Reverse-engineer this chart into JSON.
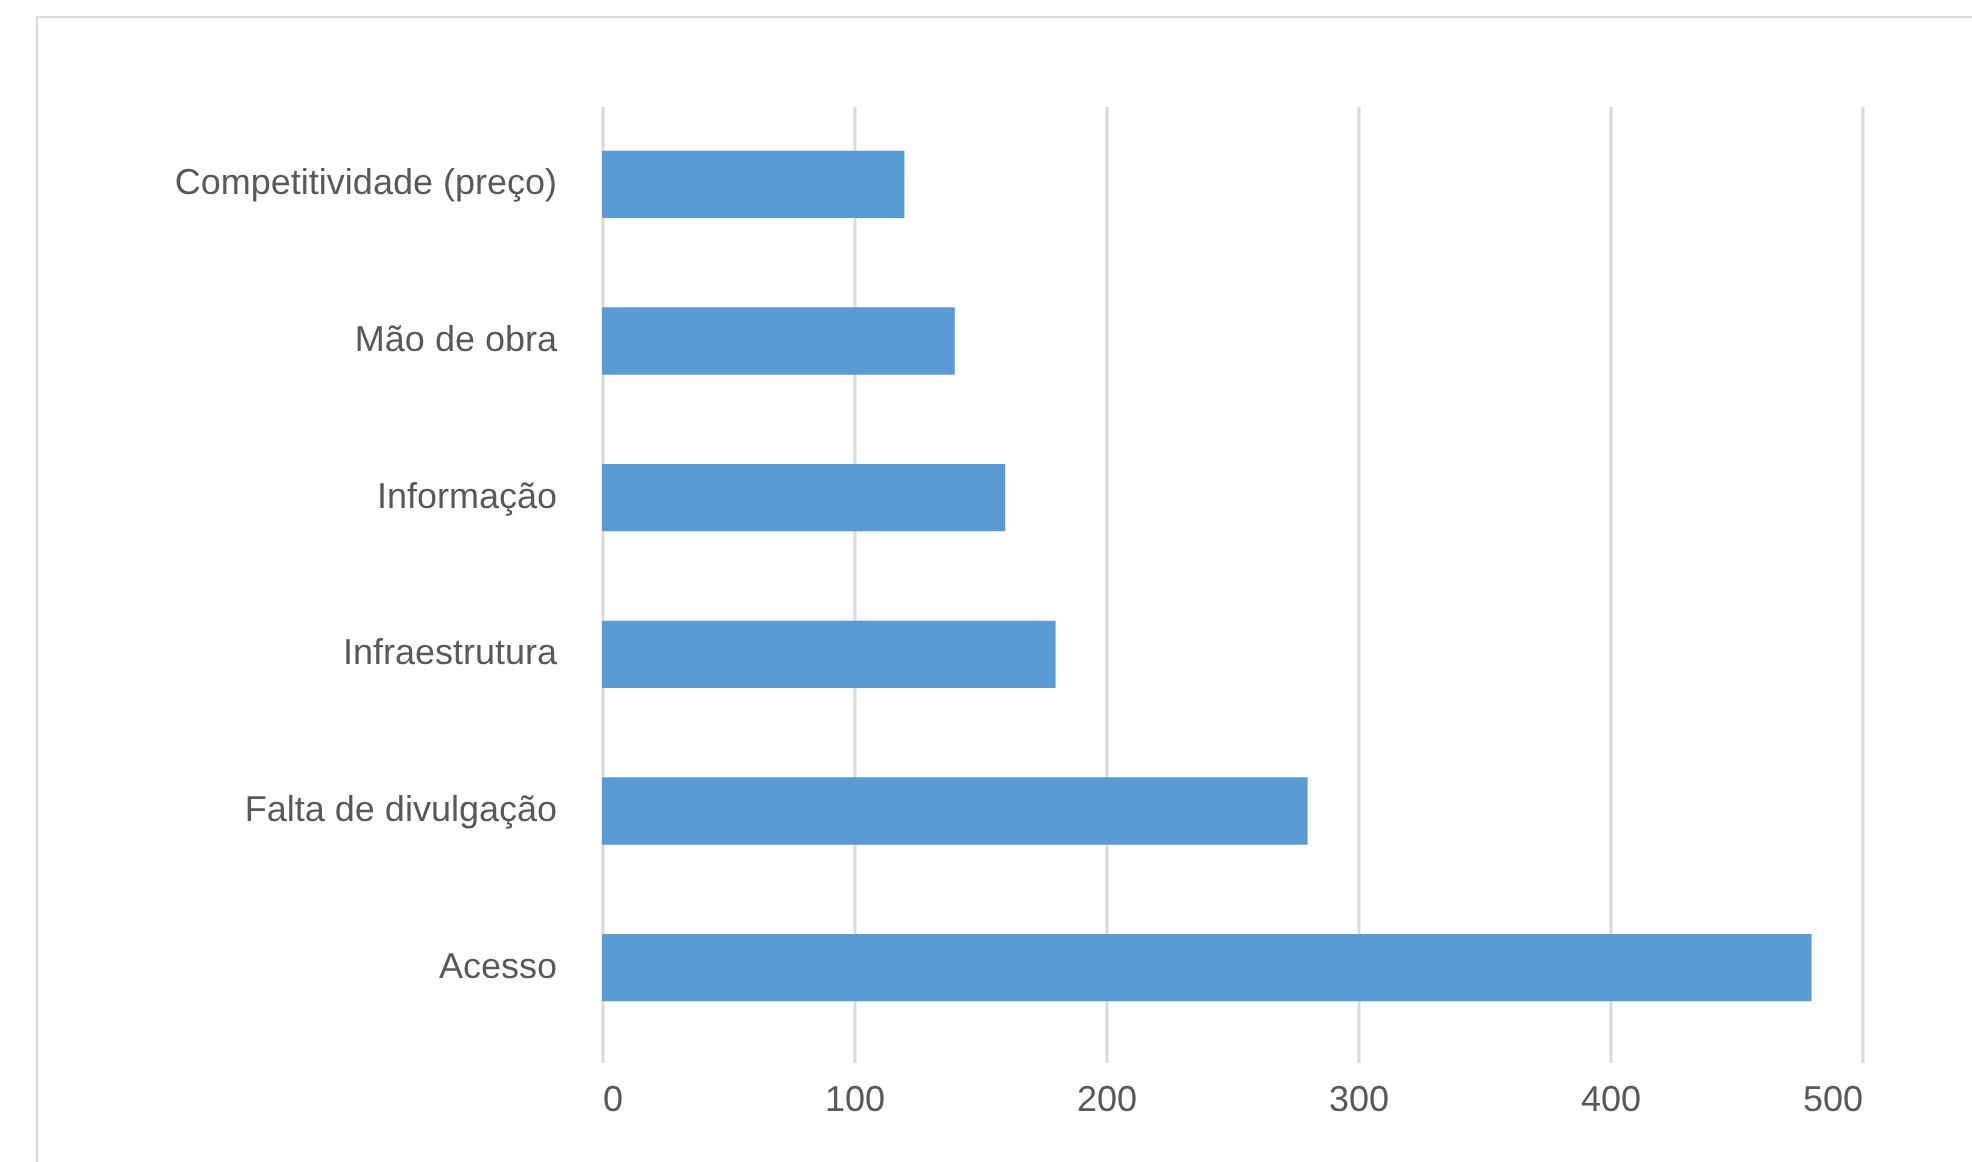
{
  "chart_data": {
    "type": "bar",
    "orientation": "horizontal",
    "categories": [
      "Competitividade (preço)",
      "Mão de obra",
      "Informação",
      "Infraestrutura",
      "Falta de divulgação",
      "Acesso"
    ],
    "values": [
      120,
      140,
      160,
      180,
      280,
      480
    ],
    "color": "#5b9bd5",
    "xlim": [
      0,
      500
    ],
    "xticks": [
      0,
      100,
      200,
      300,
      400,
      500
    ],
    "grid": "x"
  }
}
